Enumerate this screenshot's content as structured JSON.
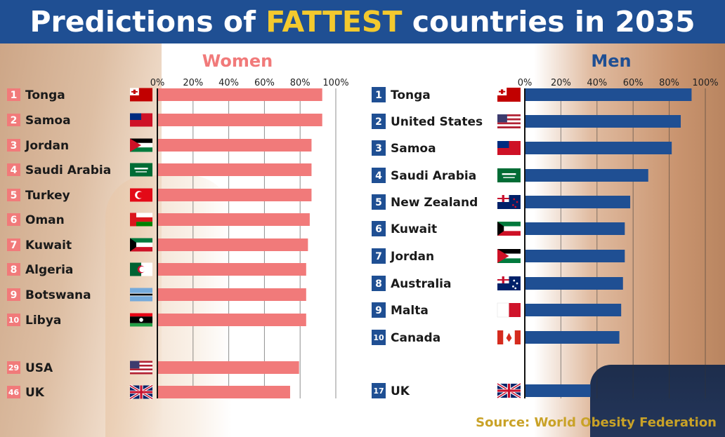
{
  "header": {
    "title_before": "Predictions of ",
    "title_highlight": "FATTEST",
    "title_after": " countries in 2035"
  },
  "colors": {
    "header_bg": "#1f4f93",
    "highlight": "#f3c92e",
    "women": "#f17a7a",
    "men": "#1f4f93",
    "source": "#c9a227"
  },
  "source": "Source: World Obesity Federation",
  "chart_data": [
    {
      "type": "bar",
      "orientation": "horizontal",
      "title": "Women",
      "xlim": [
        0,
        100
      ],
      "ticks": [
        "0%",
        "20%",
        "40%",
        "60%",
        "80%",
        "100%"
      ],
      "grid": true,
      "rows": [
        {
          "rank": "1",
          "country": "Tonga",
          "value": 92
        },
        {
          "rank": "2",
          "country": "Samoa",
          "value": 92
        },
        {
          "rank": "3",
          "country": "Jordan",
          "value": 86
        },
        {
          "rank": "4",
          "country": "Saudi Arabia",
          "value": 86
        },
        {
          "rank": "5",
          "country": "Turkey",
          "value": 86
        },
        {
          "rank": "6",
          "country": "Oman",
          "value": 85
        },
        {
          "rank": "7",
          "country": "Kuwait",
          "value": 84
        },
        {
          "rank": "8",
          "country": "Algeria",
          "value": 83
        },
        {
          "rank": "9",
          "country": "Botswana",
          "value": 83
        },
        {
          "rank": "10",
          "country": "Libya",
          "value": 83
        },
        {
          "rank": "29",
          "country": "USA",
          "value": 79
        },
        {
          "rank": "46",
          "country": "UK",
          "value": 74
        }
      ]
    },
    {
      "type": "bar",
      "orientation": "horizontal",
      "title": "Men",
      "xlim": [
        0,
        100
      ],
      "ticks": [
        "0%",
        "20%",
        "40%",
        "60%",
        "80%",
        "100%"
      ],
      "grid": true,
      "rows": [
        {
          "rank": "1",
          "country": "Tonga",
          "value": 92
        },
        {
          "rank": "2",
          "country": "United States",
          "value": 86
        },
        {
          "rank": "3",
          "country": "Samoa",
          "value": 81
        },
        {
          "rank": "4",
          "country": "Saudi Arabia",
          "value": 68
        },
        {
          "rank": "5",
          "country": "New Zealand",
          "value": 58
        },
        {
          "rank": "6",
          "country": "Kuwait",
          "value": 55
        },
        {
          "rank": "7",
          "country": "Jordan",
          "value": 55
        },
        {
          "rank": "8",
          "country": "Australia",
          "value": 54
        },
        {
          "rank": "9",
          "country": "Malta",
          "value": 53
        },
        {
          "rank": "10",
          "country": "Canada",
          "value": 52
        },
        {
          "rank": "17",
          "country": "UK",
          "value": 36
        }
      ]
    }
  ]
}
